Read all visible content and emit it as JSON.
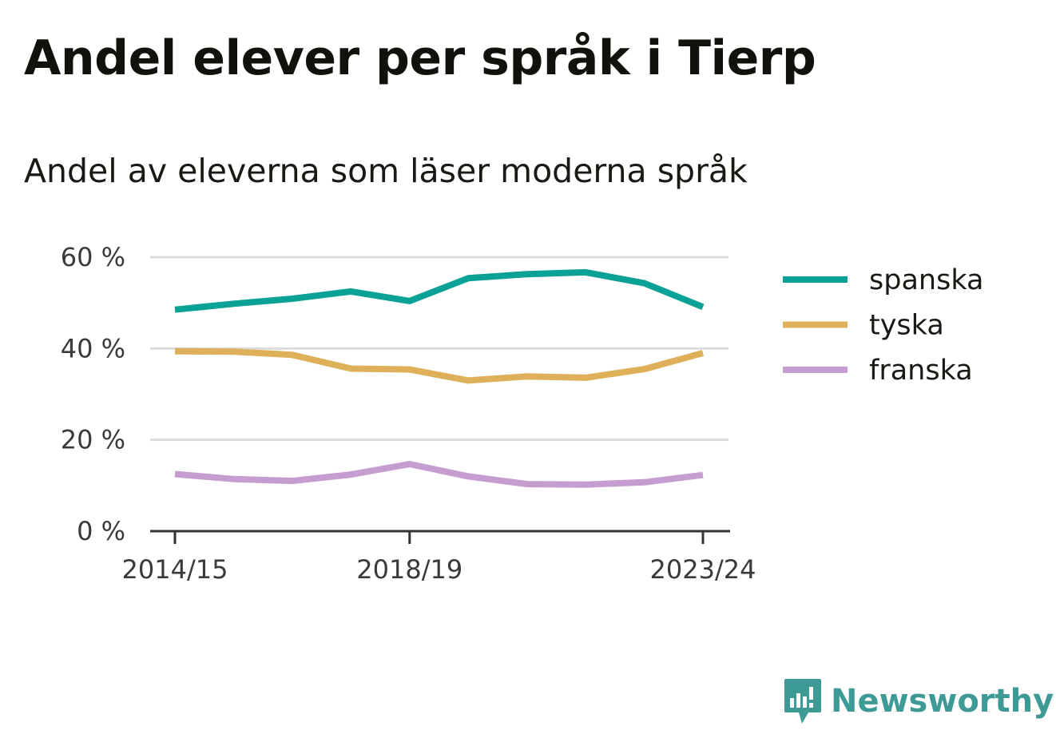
{
  "title": "Andel elever per språk i Tierp",
  "subtitle": "Andel av eleverna som läser moderna språk",
  "brand": {
    "name": "Newsworthy",
    "icon": "newsworthy-logo-icon",
    "color": "#3d9a94"
  },
  "chart_data": {
    "type": "line",
    "x": [
      "2014/15",
      "2015/16",
      "2016/17",
      "2017/18",
      "2018/19",
      "2019/20",
      "2020/21",
      "2021/22",
      "2022/23",
      "2023/24"
    ],
    "x_tick_labels": [
      "2014/15",
      "2018/19",
      "2023/24"
    ],
    "y_ticks": [
      0,
      20,
      40,
      60
    ],
    "y_tick_labels": [
      "0 %",
      "20 %",
      "40 %",
      "60 %"
    ],
    "ylim": [
      0,
      60
    ],
    "grid": true,
    "legend_position": "right",
    "series": [
      {
        "name": "spanska",
        "color": "#0aa196",
        "values": [
          48.5,
          49.8,
          50.9,
          52.5,
          50.4,
          55.4,
          56.3,
          56.7,
          54.3,
          49.1
        ]
      },
      {
        "name": "tyska",
        "color": "#deb05a",
        "values": [
          39.4,
          39.3,
          38.6,
          35.6,
          35.4,
          33.0,
          33.9,
          33.6,
          35.5,
          39.0
        ]
      },
      {
        "name": "franska",
        "color": "#c59dd0",
        "values": [
          12.5,
          11.4,
          11.0,
          12.4,
          14.7,
          12.0,
          10.3,
          10.2,
          10.7,
          12.3
        ]
      }
    ]
  }
}
